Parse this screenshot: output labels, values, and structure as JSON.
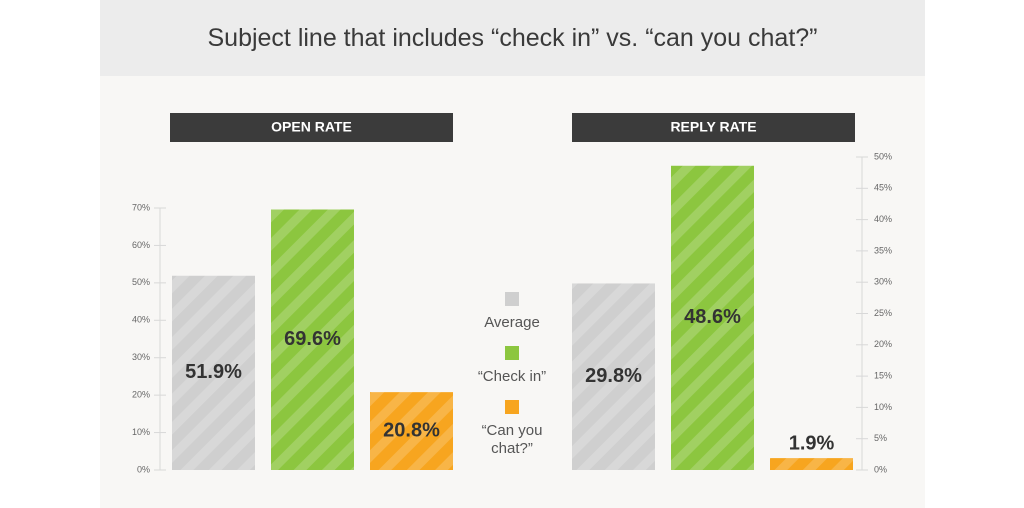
{
  "title": "Subject line that includes “check in” vs. “can you chat?”",
  "chart_data": [
    {
      "type": "bar",
      "title": "OPEN RATE",
      "categories": [
        "Average",
        "“Check in”",
        "“Can you chat?”"
      ],
      "values": [
        51.9,
        69.6,
        20.8
      ],
      "value_labels": [
        "51.9%",
        "69.6%",
        "20.8%"
      ],
      "colors": [
        "#cfcfcf",
        "#8cc63f",
        "#f7a51f"
      ],
      "ylim": [
        0,
        70
      ],
      "yticks": [
        {
          "value": 0,
          "label": "0%"
        },
        {
          "value": 10,
          "label": "10%"
        },
        {
          "value": 20,
          "label": "20%"
        },
        {
          "value": 30,
          "label": "30%"
        },
        {
          "value": 40,
          "label": "40%"
        },
        {
          "value": 50,
          "label": "50%"
        },
        {
          "value": 60,
          "label": "60%"
        },
        {
          "value": 70,
          "label": "70%"
        }
      ],
      "axis_side": "left"
    },
    {
      "type": "bar",
      "title": "REPLY RATE",
      "values": [
        29.8,
        48.6,
        1.9
      ],
      "value_labels": [
        "29.8%",
        "48.6%",
        "1.9%"
      ],
      "colors": [
        "#cfcfcf",
        "#8cc63f",
        "#f7a51f"
      ],
      "ylim": [
        0,
        50
      ],
      "yticks": [
        {
          "value": 0,
          "label": "0%"
        },
        {
          "value": 5,
          "label": "5%"
        },
        {
          "value": 10,
          "label": "10%"
        },
        {
          "value": 15,
          "label": "15%"
        },
        {
          "value": 20,
          "label": "20%"
        },
        {
          "value": 25,
          "label": "25%"
        },
        {
          "value": 30,
          "label": "30%"
        },
        {
          "value": 35,
          "label": "35%"
        },
        {
          "value": 40,
          "label": "40%"
        },
        {
          "value": 45,
          "label": "45%"
        },
        {
          "value": 50,
          "label": "50%"
        }
      ],
      "axis_side": "right"
    }
  ]
}
